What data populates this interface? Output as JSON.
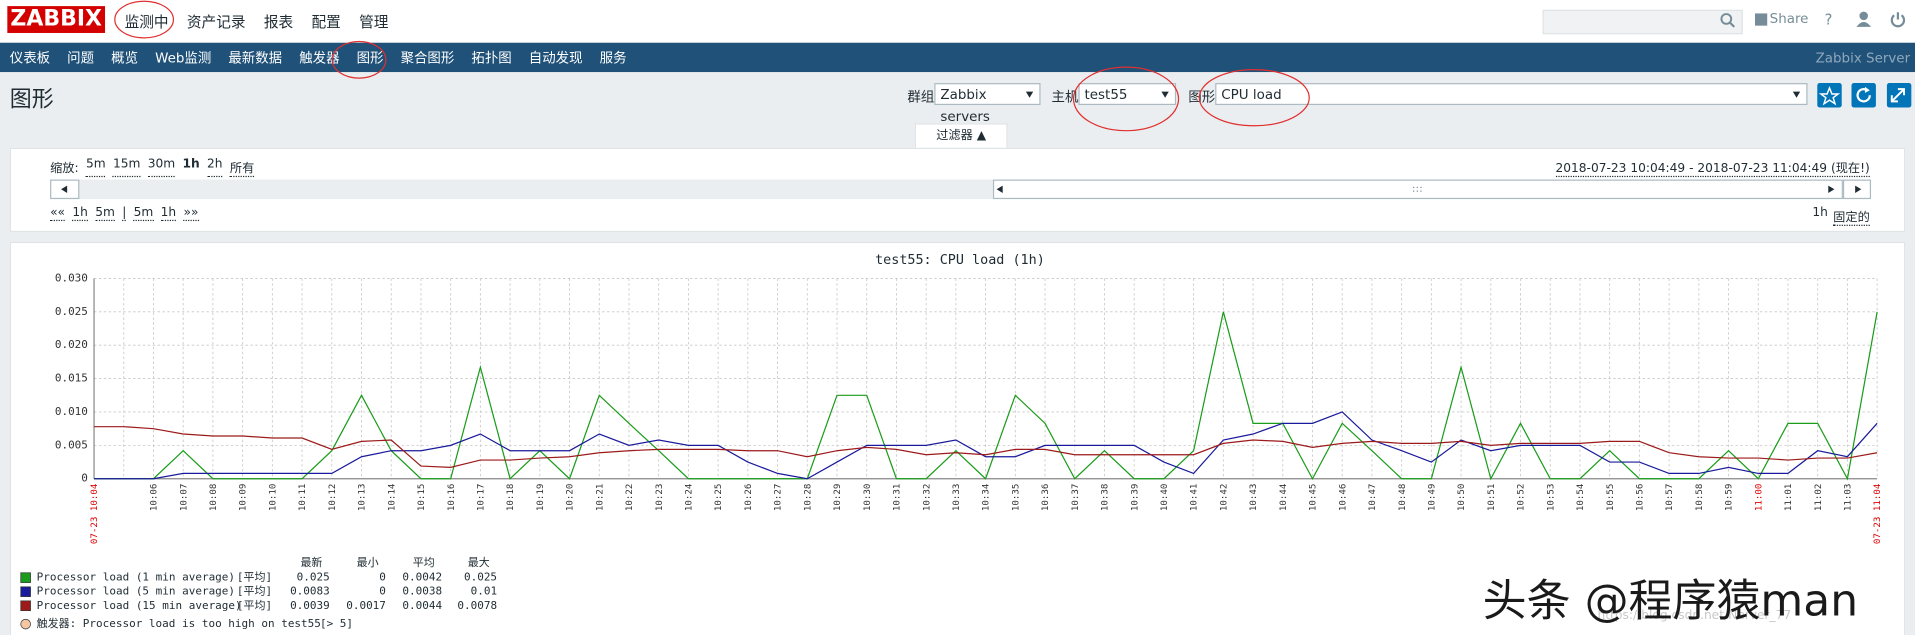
{
  "header": {
    "logo": "ZABBIX",
    "menu": [
      "监测中",
      "资产记录",
      "报表",
      "配置",
      "管理"
    ],
    "share": "Share",
    "help": "?"
  },
  "nav": {
    "items": [
      "仪表板",
      "问题",
      "概览",
      "Web监测",
      "最新数据",
      "触发器",
      "图形",
      "聚合图形",
      "拓扑图",
      "自动发现",
      "服务"
    ],
    "server": "Zabbix Server"
  },
  "page": {
    "title": "图形",
    "group_label": "群组",
    "group": "Zabbix servers",
    "host_label": "主机",
    "host": "test55",
    "graph_label": "图形",
    "graph": "CPU load",
    "filter_tab": "过滤器 ▲"
  },
  "timeline": {
    "zoom_label": "缩放:",
    "zoom": [
      "5m",
      "15m",
      "30m",
      "1h",
      "2h",
      "所有"
    ],
    "range": "2018-07-23 10:04:49 - 2018-07-23 11:04:49 (现在!)",
    "nav": [
      "««",
      "1h",
      "5m",
      "|",
      "5m",
      "1h",
      "»»"
    ],
    "period": "1h",
    "fixed": "固定的"
  },
  "chart_data": {
    "type": "line",
    "title": "test55: CPU load (1h)",
    "x": [
      "07-23 10:04",
      null,
      "10:06",
      "10:07",
      "10:08",
      "10:09",
      "10:10",
      "10:11",
      "10:12",
      "10:13",
      "10:14",
      "10:15",
      "10:16",
      "10:17",
      "10:18",
      "10:19",
      "10:20",
      "10:21",
      "10:22",
      "10:23",
      "10:24",
      "10:25",
      "10:26",
      "10:27",
      "10:28",
      "10:29",
      "10:30",
      "10:31",
      "10:32",
      "10:33",
      "10:34",
      "10:35",
      "10:36",
      "10:37",
      "10:38",
      "10:39",
      "10:40",
      "10:41",
      "10:42",
      "10:43",
      "10:44",
      "10:45",
      "10:46",
      "10:47",
      "10:48",
      "10:49",
      "10:50",
      "10:51",
      "10:52",
      "10:53",
      "10:54",
      "10:55",
      "10:56",
      "10:57",
      "10:58",
      "10:59",
      "11:00",
      "11:01",
      "11:02",
      "11:03",
      "07-23 11:04"
    ],
    "ylim": [
      0,
      0.03
    ],
    "yticks": [
      0,
      0.005,
      {
        "value": 0.01,
        "label": "0.010"
      },
      0.015,
      {
        "value": 0.02,
        "label": "0.020"
      },
      0.025,
      {
        "value": 0.03,
        "label": "0.030"
      }
    ],
    "grid": true,
    "stats_header": [
      "最新",
      "最小",
      "平均",
      "最大"
    ],
    "series": [
      {
        "name": "Processor load (1 min average)",
        "color": "#1a9c1a",
        "function": "[平均]",
        "stats": [
          0.025,
          0,
          0.0042,
          0.025
        ],
        "values": [
          0,
          0,
          0,
          0.0042,
          0,
          0,
          0,
          0,
          0.0042,
          0.0125,
          0.0042,
          0,
          0,
          0.0167,
          0,
          0.0042,
          0,
          0.0125,
          0.0083,
          0.0042,
          0,
          0,
          0,
          0,
          0,
          0.0125,
          0.0125,
          0,
          0,
          0.0042,
          0,
          0.0125,
          0.0083,
          0,
          0.0042,
          0,
          0,
          0.0042,
          0.025,
          0.0083,
          0.0083,
          0,
          0.0083,
          0.0042,
          0,
          0,
          0.0167,
          0,
          0.0083,
          0,
          0,
          0.0042,
          0,
          0,
          0,
          0.0042,
          0,
          0.0083,
          0.0083,
          0,
          0.025
        ]
      },
      {
        "name": "Processor load (5 min average)",
        "color": "#1a1a9c",
        "function": "[平均]",
        "stats": [
          0.0083,
          0,
          0.0038,
          0.01
        ],
        "values": [
          0,
          0,
          0,
          0.0008,
          0.0008,
          0.0008,
          0.0008,
          0.0008,
          0.0008,
          0.0033,
          0.0042,
          0.0042,
          0.005,
          0.0067,
          0.0042,
          0.0042,
          0.0042,
          0.0067,
          0.005,
          0.0058,
          0.005,
          0.005,
          0.0025,
          0.0008,
          0,
          0.0025,
          0.005,
          0.005,
          0.005,
          0.0058,
          0.0033,
          0.0033,
          0.005,
          0.005,
          0.005,
          0.005,
          0.0025,
          0.0008,
          0.0058,
          0.0067,
          0.0083,
          0.0083,
          0.01,
          0.0058,
          0.0042,
          0.0025,
          0.0058,
          0.0042,
          0.005,
          0.005,
          0.005,
          0.0025,
          0.0025,
          0.0008,
          0.0008,
          0.0017,
          0.0008,
          0.0008,
          0.0042,
          0.0033,
          0.0083
        ]
      },
      {
        "name": "Processor load (15 min average)",
        "color": "#9c1a1a",
        "function": "[平均]",
        "stats": [
          0.0039,
          0.0017,
          0.0044,
          0.0078
        ],
        "values": [
          0.0078,
          0.0078,
          0.0075,
          0.0067,
          0.0064,
          0.0064,
          0.0061,
          0.0061,
          0.0044,
          0.0056,
          0.0058,
          0.0019,
          0.0017,
          0.0028,
          0.0028,
          0.0031,
          0.0033,
          0.0039,
          0.0042,
          0.0044,
          0.0044,
          0.0044,
          0.0042,
          0.0042,
          0.0033,
          0.0042,
          0.0047,
          0.0044,
          0.0036,
          0.0039,
          0.0036,
          0.0044,
          0.0044,
          0.0036,
          0.0036,
          0.0036,
          0.0036,
          0.0036,
          0.0053,
          0.0058,
          0.0056,
          0.0047,
          0.0053,
          0.0056,
          0.0053,
          0.0053,
          0.0056,
          0.005,
          0.0053,
          0.0053,
          0.0053,
          0.0056,
          0.0056,
          0.0039,
          0.0033,
          0.0031,
          0.0031,
          0.0028,
          0.0031,
          0.0031,
          0.0039
        ]
      }
    ],
    "trigger": {
      "label": "触发器: Processor load is too high on test55",
      "threshold": "[> 5]"
    }
  },
  "watermark": "头条 @程序猿man",
  "watermark_url": "https://blog.csdn.net/Nerver_77"
}
